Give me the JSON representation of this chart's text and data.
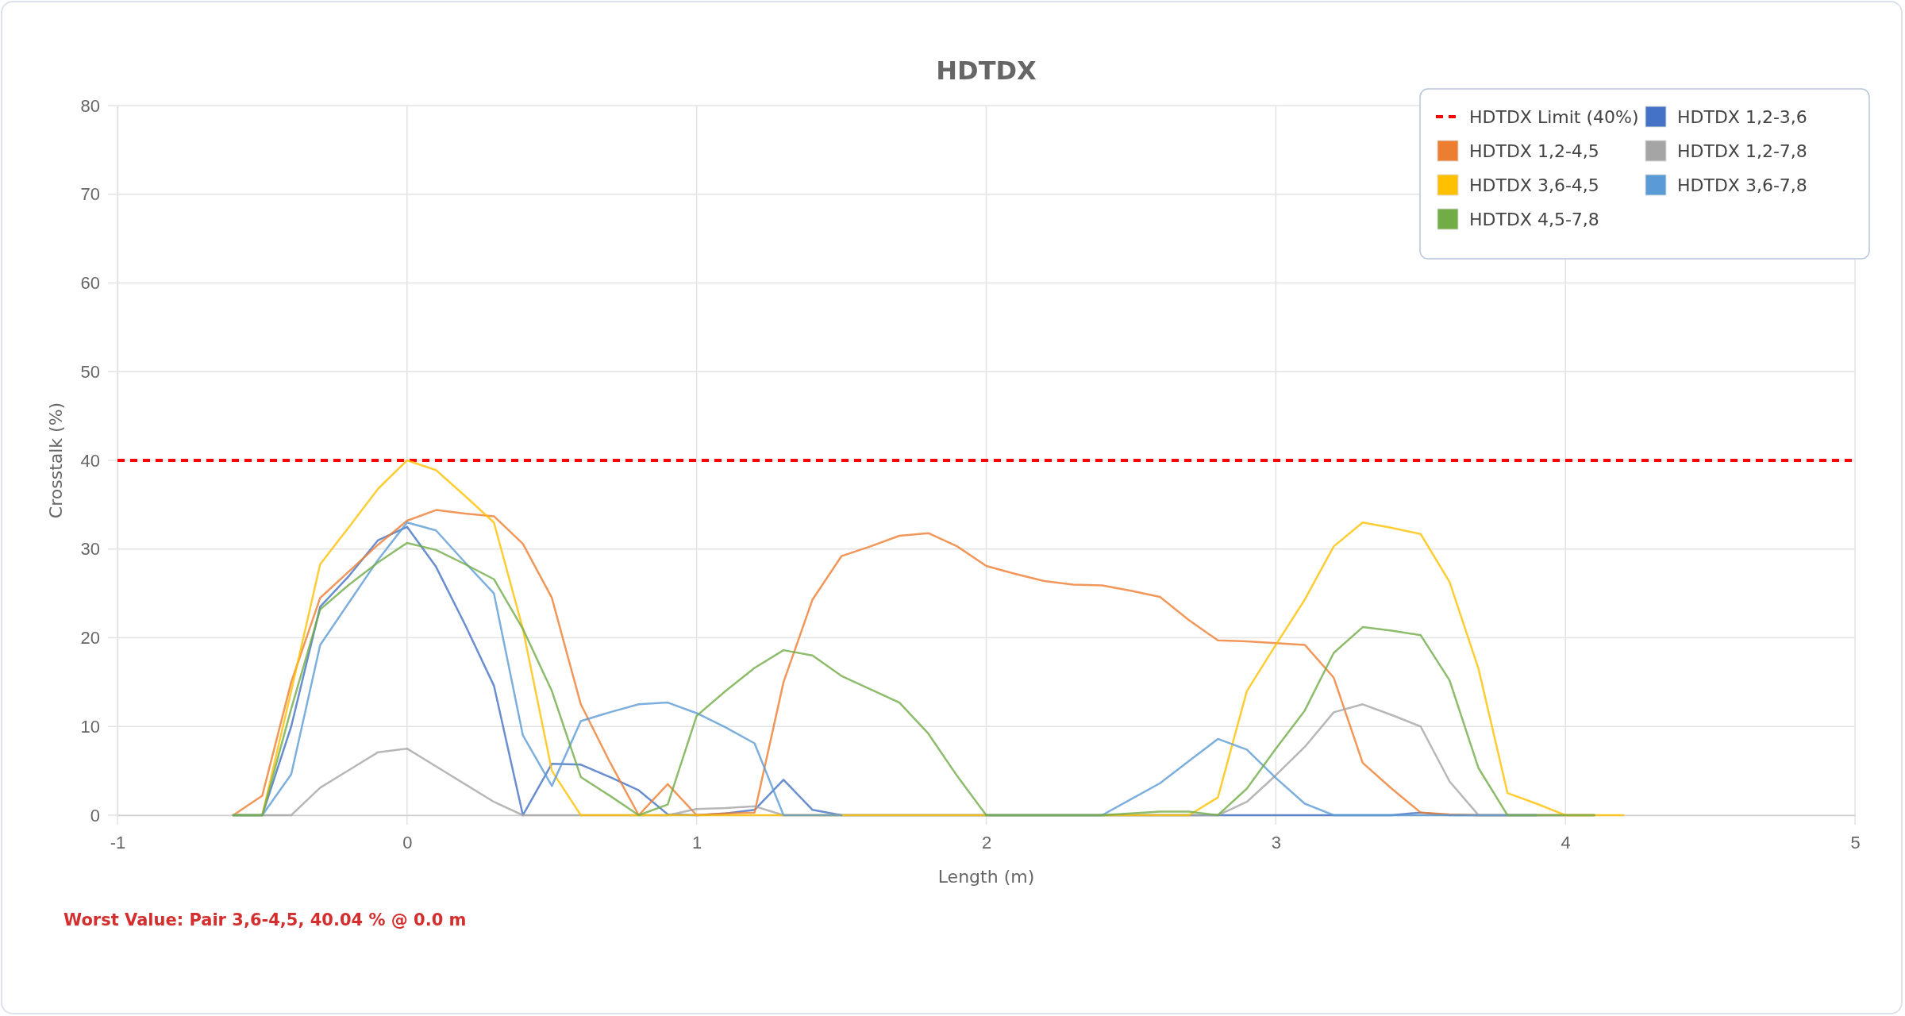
{
  "chart_data": {
    "type": "line",
    "title": "HDTDX",
    "xlabel": "Length (m)",
    "ylabel": "Crosstalk (%)",
    "x": [
      -0.6,
      -0.5,
      -0.4,
      -0.3,
      -0.2,
      -0.1,
      0,
      0.1,
      0.2,
      0.3,
      0.4,
      0.5,
      0.6,
      0.7,
      0.8,
      0.9,
      1,
      1.1,
      1.2,
      1.3,
      1.4,
      1.5,
      1.6,
      1.7,
      1.8,
      1.9,
      2,
      2.1,
      2.2,
      2.3,
      2.4,
      2.5,
      2.6,
      2.7,
      2.8,
      2.9,
      3,
      3.1,
      3.2,
      3.3,
      3.4,
      3.5,
      3.6,
      3.7,
      3.8,
      3.9,
      4,
      4.1,
      4.2
    ],
    "series": [
      {
        "name": "HDTDX 1,2-3,6",
        "color": "#4472c4",
        "values": [
          0,
          0,
          10,
          23.5,
          27,
          31,
          32.5,
          28,
          21.5,
          14.6,
          0,
          5.8,
          5.7,
          4.3,
          2.8,
          0.1,
          0,
          0.2,
          0.6,
          4,
          0.6,
          0,
          0,
          0,
          0,
          0,
          0,
          0,
          0,
          0,
          0,
          0,
          0,
          0,
          0,
          0,
          0,
          0,
          0,
          0,
          0,
          0.3,
          0,
          0,
          0,
          0,
          null,
          null,
          null
        ]
      },
      {
        "name": "HDTDX 1,2-4,5",
        "color": "#ed7d31",
        "values": [
          0,
          2.2,
          15,
          24.5,
          27.5,
          30.5,
          33.2,
          34.4,
          34,
          33.7,
          30.6,
          24.5,
          12.5,
          6,
          0,
          3.5,
          0,
          0.2,
          0.3,
          15,
          24.3,
          29.2,
          30.3,
          31.5,
          31.8,
          30.3,
          28.1,
          27.2,
          26.4,
          26,
          25.9,
          25.3,
          24.6,
          22,
          19.7,
          19.6,
          19.4,
          19.2,
          15.5,
          5.9,
          3,
          0.3,
          0.1,
          0,
          0,
          0,
          0,
          0,
          null
        ]
      },
      {
        "name": "HDTDX 1,2-7,8",
        "color": "#a5a5a5",
        "values": [
          0,
          0,
          0,
          3.1,
          5.1,
          7.1,
          7.5,
          5.5,
          3.5,
          1.5,
          0,
          0,
          0,
          0,
          0,
          0,
          0.7,
          0.8,
          1,
          0,
          0,
          0,
          0,
          0,
          0,
          0,
          0,
          0,
          0,
          0,
          0,
          0,
          0,
          0,
          0,
          1.5,
          4.5,
          7.7,
          11.6,
          12.5,
          11.3,
          10,
          3.8,
          0,
          0,
          0,
          0,
          0,
          null
        ]
      },
      {
        "name": "HDTDX 3,6-4,5",
        "color": "#ffc000",
        "values": [
          0,
          0,
          14,
          28.3,
          32.5,
          36.8,
          40,
          38.9,
          36,
          33,
          21,
          5,
          0,
          0,
          0,
          0,
          0,
          0,
          0,
          0,
          0,
          0,
          0,
          0,
          0,
          0,
          0,
          0,
          0,
          0,
          0,
          0,
          0,
          0,
          2,
          14,
          19.2,
          24.3,
          30.3,
          33,
          32.4,
          31.7,
          26.3,
          16.5,
          2.5,
          1.3,
          0,
          0,
          0
        ]
      },
      {
        "name": "HDTDX 3,6-7,8",
        "color": "#5b9bd5",
        "values": [
          0,
          0,
          4.6,
          19.2,
          24,
          28.8,
          33,
          32.1,
          28.5,
          25,
          9,
          3.3,
          10.6,
          11.6,
          12.5,
          12.7,
          11.5,
          9.9,
          8.1,
          0,
          0,
          0,
          null,
          null,
          null,
          null,
          0,
          0,
          0,
          0,
          0,
          1.8,
          3.6,
          6.1,
          8.6,
          7.4,
          4.2,
          1.3,
          0,
          0,
          0,
          0,
          0,
          0,
          0,
          0,
          null,
          null,
          null
        ]
      },
      {
        "name": "HDTDX 4,5-7,8",
        "color": "#70ad47",
        "values": [
          0,
          0,
          12,
          23.2,
          26,
          28.5,
          30.7,
          29.9,
          28.3,
          26.6,
          21,
          14,
          4.3,
          2.2,
          0,
          1.2,
          11.2,
          14,
          16.6,
          18.6,
          18,
          15.7,
          14.2,
          12.7,
          9.2,
          4.4,
          0,
          0,
          0,
          0,
          0,
          0.2,
          0.4,
          0.4,
          0,
          3,
          7.5,
          11.8,
          18.3,
          21.2,
          20.8,
          20.3,
          15.2,
          5.3,
          0,
          0,
          0,
          0,
          null
        ]
      }
    ],
    "xlim": [
      -1,
      5
    ],
    "xticks": [
      -1,
      0,
      1,
      2,
      3,
      4,
      5
    ],
    "ylim": [
      0,
      80
    ],
    "yticks": [
      0,
      10,
      20,
      30,
      40,
      50,
      60,
      70,
      80
    ],
    "grid": true,
    "legend": "top right",
    "marker": "none",
    "line_style": "solid",
    "ref_lines": [
      {
        "axis": "y",
        "value": 40,
        "label": "HDTDX Limit (40%)",
        "color": "#ff0000",
        "line_style": "dashed"
      }
    ],
    "annotations": [
      "Worst Value: Pair 3,6-4,5, 40.04 % @ 0.0 m"
    ]
  }
}
